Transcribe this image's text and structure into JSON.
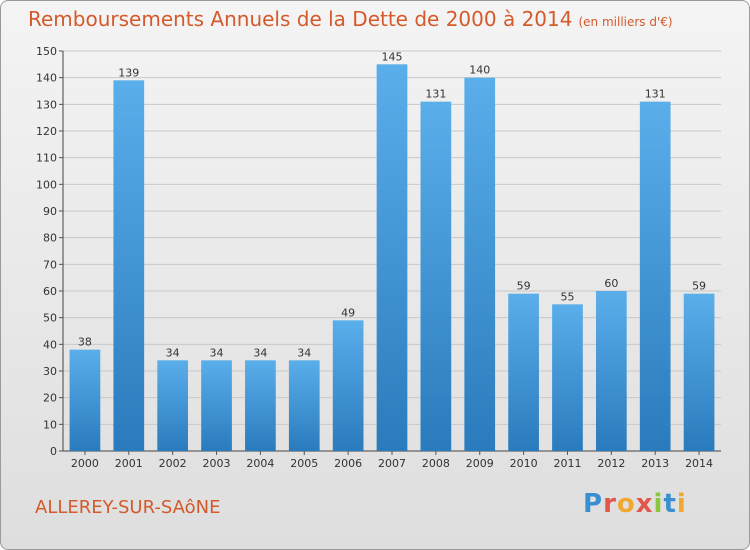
{
  "header": {
    "title": "Remboursements Annuels de la Dette de 2000 à 2014",
    "unit": "(en milliers d'€)"
  },
  "footer": {
    "city": "ALLEREY-SUR-SAôNE",
    "logo": "Proxiti",
    "logo_colors": [
      "#3a8fd0",
      "#e2574c",
      "#f0a830",
      "#e2574c",
      "#8cc63f",
      "#3a8fd0",
      "#f0a830"
    ]
  },
  "chart_data": {
    "type": "bar",
    "title": "Remboursements Annuels de la Dette de 2000 à 2014",
    "xlabel": "",
    "ylabel": "",
    "categories": [
      "2000",
      "2001",
      "2002",
      "2003",
      "2004",
      "2005",
      "2006",
      "2007",
      "2008",
      "2009",
      "2010",
      "2011",
      "2012",
      "2013",
      "2014"
    ],
    "values": [
      38,
      139,
      34,
      34,
      34,
      34,
      49,
      145,
      131,
      140,
      59,
      55,
      60,
      131,
      59
    ],
    "ylim": [
      0,
      150
    ],
    "yticks": [
      0,
      10,
      20,
      30,
      40,
      50,
      60,
      70,
      80,
      90,
      100,
      110,
      120,
      130,
      140,
      150
    ],
    "grid": true,
    "legend": "none",
    "bar_color_top": "#5aaeea",
    "bar_color_bottom": "#2a7bbd"
  }
}
